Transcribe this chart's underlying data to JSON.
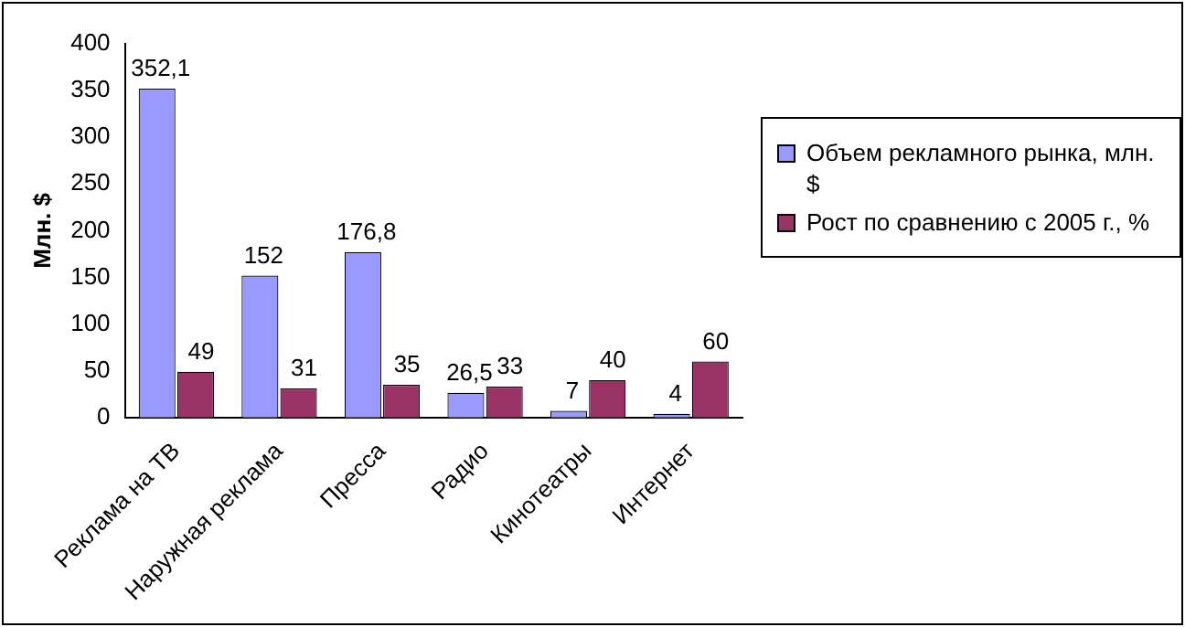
{
  "chart_data": {
    "type": "bar",
    "ylabel": "Млн. $",
    "categories": [
      "Реклама на ТВ",
      "Наружная реклама",
      "Пресса",
      "Радио",
      "Кинотеатры",
      "Интернет"
    ],
    "series": [
      {
        "name": "Объем рекламного рынка, млн. $",
        "color": "#9999ff",
        "values": [
          352.1,
          152,
          176.8,
          26.5,
          7,
          4
        ],
        "value_labels": [
          "352,1",
          "152",
          "176,8",
          "26,5",
          "7",
          "4"
        ]
      },
      {
        "name": "Рост по сравнению с 2005 г., %",
        "color": "#993366",
        "values": [
          49,
          31,
          35,
          33,
          40,
          60
        ],
        "value_labels": [
          "49",
          "31",
          "35",
          "33",
          "40",
          "60"
        ]
      }
    ],
    "ylim": [
      0,
      400
    ],
    "yticks": [
      0,
      50,
      100,
      150,
      200,
      250,
      300,
      350,
      400
    ],
    "legend": "right"
  }
}
